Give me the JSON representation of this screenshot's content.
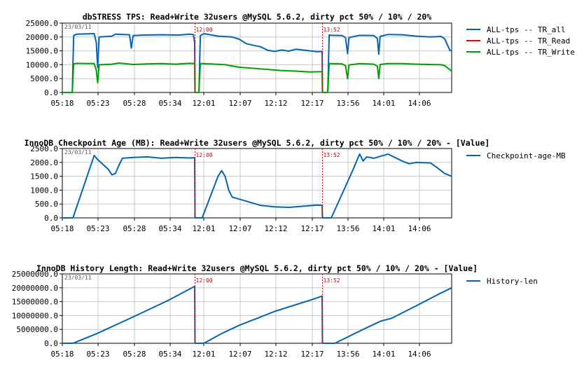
{
  "chart_data": [
    {
      "type": "line",
      "title": "dbSTRESS TPS: Read+Write 32users @MySQL 5.6.2, dirty pct 50% / 10% / 20%",
      "date_label": "23/03/11",
      "x_ticks": [
        "05:18",
        "05:23",
        "05:28",
        "05:34",
        "12:01",
        "12:07",
        "12:12",
        "12:17",
        "13:56",
        "14:01",
        "14:06"
      ],
      "y_ticks": [
        "0.0",
        "5000.0",
        "10000.0",
        "15000.0",
        "20000.0",
        "25000.0"
      ],
      "ylim": [
        0,
        25000
      ],
      "xlim": [
        0,
        110
      ],
      "grid": true,
      "legend_position": "right",
      "markers": [
        {
          "x": 37.5,
          "label": "12:00"
        },
        {
          "x": 73.5,
          "label": "13:52"
        }
      ],
      "series": [
        {
          "name": "ALL-tps -- TR_all",
          "color": "#0066b3",
          "points": [
            [
              0,
              0
            ],
            [
              2.8,
              0
            ],
            [
              3.2,
              20500
            ],
            [
              4,
              21000
            ],
            [
              9,
              21200
            ],
            [
              9.6,
              18000
            ],
            [
              10,
              9000
            ],
            [
              10.4,
              20000
            ],
            [
              14,
              20300
            ],
            [
              15,
              21000
            ],
            [
              19,
              20800
            ],
            [
              19.5,
              16000
            ],
            [
              20,
              20500
            ],
            [
              23,
              20700
            ],
            [
              28,
              20800
            ],
            [
              33,
              20700
            ],
            [
              36,
              21000
            ],
            [
              37,
              20900
            ],
            [
              37.4,
              18000
            ],
            [
              37.5,
              0
            ],
            [
              38.6,
              0
            ],
            [
              39,
              20500
            ],
            [
              40,
              21200
            ],
            [
              44,
              20300
            ],
            [
              48,
              20000
            ],
            [
              50,
              19200
            ],
            [
              52,
              17600
            ],
            [
              54,
              17000
            ],
            [
              56,
              16500
            ],
            [
              58,
              15200
            ],
            [
              60,
              14800
            ],
            [
              62,
              15300
            ],
            [
              64,
              14900
            ],
            [
              66,
              15600
            ],
            [
              68,
              15300
            ],
            [
              70,
              15000
            ],
            [
              72,
              14700
            ],
            [
              73.4,
              14800
            ],
            [
              73.5,
              0
            ],
            [
              75,
              0
            ],
            [
              75.4,
              20700
            ],
            [
              76,
              20600
            ],
            [
              79,
              20500
            ],
            [
              80,
              19800
            ],
            [
              80.6,
              14000
            ],
            [
              81,
              19800
            ],
            [
              84,
              20600
            ],
            [
              88,
              20500
            ],
            [
              89,
              19500
            ],
            [
              89.4,
              13800
            ],
            [
              89.8,
              20200
            ],
            [
              92,
              20900
            ],
            [
              96,
              20800
            ],
            [
              100,
              20300
            ],
            [
              104,
              20000
            ],
            [
              107,
              20200
            ],
            [
              108,
              19400
            ],
            [
              109.5,
              15200
            ],
            [
              110,
              15000
            ]
          ]
        },
        {
          "name": "ALL-tps -- TR_Read",
          "color": "#ff0000",
          "points": []
        },
        {
          "name": "ALL-tps -- TR_Write",
          "color": "#00a000",
          "points": [
            [
              0,
              0
            ],
            [
              2.8,
              0
            ],
            [
              3.2,
              10300
            ],
            [
              4,
              10500
            ],
            [
              9,
              10400
            ],
            [
              9.6,
              8000
            ],
            [
              10,
              3500
            ],
            [
              10.4,
              10000
            ],
            [
              14,
              10200
            ],
            [
              16,
              10600
            ],
            [
              20,
              10100
            ],
            [
              24,
              10300
            ],
            [
              28,
              10400
            ],
            [
              32,
              10200
            ],
            [
              36,
              10500
            ],
            [
              37.4,
              10400
            ],
            [
              37.5,
              0
            ],
            [
              38.6,
              0
            ],
            [
              39,
              10400
            ],
            [
              42,
              10300
            ],
            [
              46,
              10000
            ],
            [
              50,
              9100
            ],
            [
              54,
              8700
            ],
            [
              58,
              8300
            ],
            [
              62,
              7900
            ],
            [
              66,
              7700
            ],
            [
              70,
              7400
            ],
            [
              73.4,
              7500
            ],
            [
              73.5,
              0
            ],
            [
              75,
              0
            ],
            [
              75.4,
              10400
            ],
            [
              79,
              10300
            ],
            [
              80,
              9700
            ],
            [
              80.6,
              5000
            ],
            [
              81,
              9900
            ],
            [
              84,
              10400
            ],
            [
              88,
              10200
            ],
            [
              89,
              9500
            ],
            [
              89.4,
              5000
            ],
            [
              89.8,
              10100
            ],
            [
              92,
              10400
            ],
            [
              96,
              10400
            ],
            [
              100,
              10200
            ],
            [
              104,
              10100
            ],
            [
              107,
              10000
            ],
            [
              108,
              9700
            ],
            [
              109.5,
              8200
            ],
            [
              110,
              7800
            ]
          ]
        }
      ]
    },
    {
      "type": "line",
      "title": "InnoDB Checkpoint Age (MB): Read+Write 32users @MySQL 5.6.2, dirty pct 50% / 10% / 20% - [Value]",
      "date_label": "23/03/11",
      "x_ticks": [
        "05:18",
        "05:23",
        "05:28",
        "05:34",
        "12:01",
        "12:07",
        "12:12",
        "12:17",
        "13:56",
        "14:01",
        "14:06"
      ],
      "y_ticks": [
        "0.0",
        "500.0",
        "1000.0",
        "1500.0",
        "2000.0",
        "2500.0"
      ],
      "ylim": [
        0,
        2500
      ],
      "xlim": [
        0,
        110
      ],
      "grid": true,
      "legend_position": "right",
      "markers": [
        {
          "x": 37.5,
          "label": "12:00"
        },
        {
          "x": 73.5,
          "label": "13:52"
        }
      ],
      "series": [
        {
          "name": "Checkpoint-age-MB",
          "color": "#0066b3",
          "points": [
            [
              0,
              0
            ],
            [
              3,
              0
            ],
            [
              9,
              2250
            ],
            [
              10,
              2100
            ],
            [
              13,
              1750
            ],
            [
              14,
              1550
            ],
            [
              15,
              1600
            ],
            [
              16,
              1900
            ],
            [
              17,
              2150
            ],
            [
              20,
              2180
            ],
            [
              24,
              2200
            ],
            [
              28,
              2150
            ],
            [
              32,
              2180
            ],
            [
              36,
              2160
            ],
            [
              37.4,
              2170
            ],
            [
              37.5,
              0
            ],
            [
              39.5,
              0
            ],
            [
              44,
              1500
            ],
            [
              45,
              1700
            ],
            [
              46,
              1500
            ],
            [
              47,
              1000
            ],
            [
              48,
              750
            ],
            [
              52,
              600
            ],
            [
              56,
              450
            ],
            [
              60,
              400
            ],
            [
              64,
              380
            ],
            [
              68,
              420
            ],
            [
              72,
              460
            ],
            [
              73.4,
              450
            ],
            [
              73.5,
              0
            ],
            [
              76,
              0
            ],
            [
              82,
              1700
            ],
            [
              83,
              2000
            ],
            [
              84,
              2300
            ],
            [
              85,
              2050
            ],
            [
              86,
              2200
            ],
            [
              88,
              2150
            ],
            [
              92,
              2300
            ],
            [
              96,
              2050
            ],
            [
              98,
              1950
            ],
            [
              100,
              2000
            ],
            [
              104,
              1980
            ],
            [
              106,
              1800
            ],
            [
              108,
              1600
            ],
            [
              110,
              1500
            ]
          ]
        }
      ]
    },
    {
      "type": "line",
      "title": "InnoDB History Length: Read+Write 32users @MySQL 5.6.2, dirty pct 50% / 10% / 20% - [Value]",
      "date_label": "23/03/11",
      "x_ticks": [
        "05:18",
        "05:23",
        "05:28",
        "05:34",
        "12:01",
        "12:07",
        "12:12",
        "12:17",
        "13:56",
        "14:01",
        "14:06"
      ],
      "y_ticks": [
        "0.0",
        "5000000.0",
        "10000000.0",
        "15000000.0",
        "20000000.0",
        "25000000.0"
      ],
      "ylim": [
        0,
        25000000
      ],
      "xlim": [
        0,
        110
      ],
      "grid": true,
      "legend_position": "right",
      "markers": [
        {
          "x": 37.5,
          "label": "12:00"
        },
        {
          "x": 73.5,
          "label": "13:52"
        }
      ],
      "series": [
        {
          "name": "History-len",
          "color": "#0066b3",
          "points": [
            [
              0,
              0
            ],
            [
              3,
              0
            ],
            [
              10,
              3600000
            ],
            [
              20,
              9500000
            ],
            [
              30,
              15500000
            ],
            [
              37.4,
              20500000
            ],
            [
              37.5,
              0
            ],
            [
              40,
              0
            ],
            [
              45,
              3500000
            ],
            [
              50,
              6500000
            ],
            [
              55,
              9000000
            ],
            [
              60,
              11500000
            ],
            [
              65,
              13500000
            ],
            [
              70,
              15500000
            ],
            [
              73.4,
              17000000
            ],
            [
              73.5,
              0
            ],
            [
              77,
              0
            ],
            [
              85,
              5000000
            ],
            [
              90,
              8000000
            ],
            [
              93,
              9000000
            ],
            [
              100,
              13500000
            ],
            [
              106,
              17500000
            ],
            [
              110,
              20000000
            ]
          ]
        }
      ]
    }
  ]
}
